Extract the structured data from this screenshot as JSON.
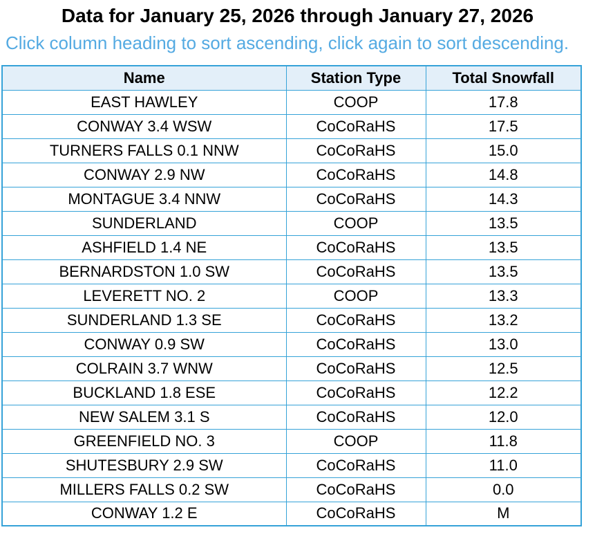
{
  "page": {
    "title": "Data for January 25, 2026 through January 27, 2026",
    "subtitle": "Click column heading to sort ascending, click again to sort descending."
  },
  "colors": {
    "table_border": "#35A2D8",
    "header_background": "#E3EFF9",
    "subtitle_text": "#54AAE2",
    "title_text": "#000000",
    "cell_text": "#000000"
  },
  "table": {
    "columns": [
      {
        "key": "name",
        "label": "Name"
      },
      {
        "key": "station_type",
        "label": "Station Type"
      },
      {
        "key": "total_snowfall",
        "label": "Total Snowfall"
      }
    ],
    "rows": [
      [
        "EAST HAWLEY",
        "COOP",
        "17.8"
      ],
      [
        "CONWAY 3.4 WSW",
        "CoCoRaHS",
        "17.5"
      ],
      [
        "TURNERS FALLS 0.1 NNW",
        "CoCoRaHS",
        "15.0"
      ],
      [
        "CONWAY 2.9 NW",
        "CoCoRaHS",
        "14.8"
      ],
      [
        "MONTAGUE 3.4 NNW",
        "CoCoRaHS",
        "14.3"
      ],
      [
        "SUNDERLAND",
        "COOP",
        "13.5"
      ],
      [
        "ASHFIELD 1.4 NE",
        "CoCoRaHS",
        "13.5"
      ],
      [
        "BERNARDSTON 1.0 SW",
        "CoCoRaHS",
        "13.5"
      ],
      [
        "LEVERETT NO. 2",
        "COOP",
        "13.3"
      ],
      [
        "SUNDERLAND 1.3 SE",
        "CoCoRaHS",
        "13.2"
      ],
      [
        "CONWAY 0.9 SW",
        "CoCoRaHS",
        "13.0"
      ],
      [
        "COLRAIN 3.7 WNW",
        "CoCoRaHS",
        "12.5"
      ],
      [
        "BUCKLAND 1.8 ESE",
        "CoCoRaHS",
        "12.2"
      ],
      [
        "NEW SALEM 3.1 S",
        "CoCoRaHS",
        "12.0"
      ],
      [
        "GREENFIELD NO. 3",
        "COOP",
        "11.8"
      ],
      [
        "SHUTESBURY 2.9 SW",
        "CoCoRaHS",
        "11.0"
      ],
      [
        "MILLERS FALLS 0.2 SW",
        "CoCoRaHS",
        "0.0"
      ],
      [
        "CONWAY 1.2 E",
        "CoCoRaHS",
        "M"
      ]
    ]
  }
}
